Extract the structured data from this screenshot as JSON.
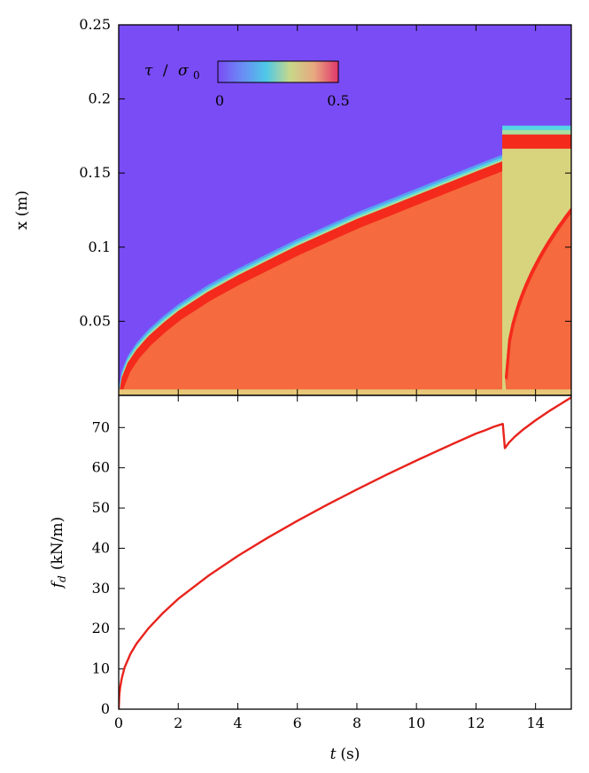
{
  "chart_data": [
    {
      "type": "heatmap",
      "ylabel": "x (m)",
      "xlabel": "",
      "xlim": [
        0,
        15.2
      ],
      "ylim": [
        0,
        0.25
      ],
      "x_ticks": [
        0,
        2,
        4,
        6,
        8,
        10,
        12,
        14
      ],
      "y_ticks": [
        0.05,
        0.1,
        0.15,
        0.2,
        0.25
      ],
      "y_tick_labels": [
        "0.05",
        "0.1",
        "0.15",
        "0.2",
        "0.25"
      ],
      "colorbar": {
        "label": "τ / σ₀",
        "label_parts": {
          "tau": "τ",
          "slash": "/",
          "sigma": "σ",
          "sub": "0"
        },
        "min": 0,
        "max": 0.5,
        "tick_labels": [
          "0",
          "0.5"
        ],
        "position": "top-left",
        "colors": [
          "#7a4cf5",
          "#6a8cf5",
          "#4ec8e8",
          "#c8d88a",
          "#e8a880",
          "#e0356a"
        ]
      },
      "colors": {
        "background": "#7a4cf5",
        "fill": "#f56a3e",
        "front": "#f42a1c",
        "bottom_band": "#e8c878",
        "reset_region": "#d8d47e"
      },
      "front_x_at_t": {
        "t": [
          0,
          0.1,
          0.3,
          0.6,
          1,
          1.5,
          2,
          3,
          4,
          5,
          6,
          7,
          8,
          9,
          10,
          11,
          12,
          12.9
        ],
        "x": [
          0.0,
          0.012,
          0.022,
          0.031,
          0.04,
          0.049,
          0.057,
          0.07,
          0.081,
          0.091,
          0.101,
          0.11,
          0.119,
          0.127,
          0.135,
          0.143,
          0.151,
          0.158
        ]
      },
      "after_jump": {
        "t_start": 12.97,
        "x_front": 0.176
      }
    },
    {
      "type": "line",
      "xlabel": "t (s)",
      "xlabel_parts": {
        "var": "t",
        "unit": "(s)"
      },
      "ylabel": "f_d (kN/m)",
      "ylabel_parts": {
        "var": "f",
        "sub": "d",
        "unit": "(kN/m)"
      },
      "xlim": [
        0,
        15.2
      ],
      "ylim": [
        0,
        78
      ],
      "x_ticks": [
        0,
        2,
        4,
        6,
        8,
        10,
        12,
        14
      ],
      "y_ticks": [
        0,
        10,
        20,
        30,
        40,
        50,
        60,
        70
      ],
      "grid": false,
      "series": [
        {
          "color": "#e8231c",
          "x": [
            0,
            0.02,
            0.05,
            0.1,
            0.2,
            0.4,
            0.6,
            1,
            1.5,
            2,
            3,
            4,
            5,
            6,
            7,
            8,
            9,
            10,
            11,
            12,
            12.3,
            12.6,
            12.9,
            12.97,
            13.1,
            13.3,
            13.6,
            14,
            14.5,
            15.2
          ],
          "y": [
            0,
            3.5,
            5.5,
            7.6,
            10.4,
            13.8,
            16.3,
            20.1,
            24,
            27.4,
            33.1,
            38.1,
            42.6,
            46.8,
            50.8,
            54.6,
            58.3,
            61.8,
            65.2,
            68.5,
            69.3,
            70.2,
            70.9,
            64.9,
            66.2,
            67.7,
            69.6,
            71.8,
            74.3,
            77.5
          ]
        }
      ]
    }
  ]
}
